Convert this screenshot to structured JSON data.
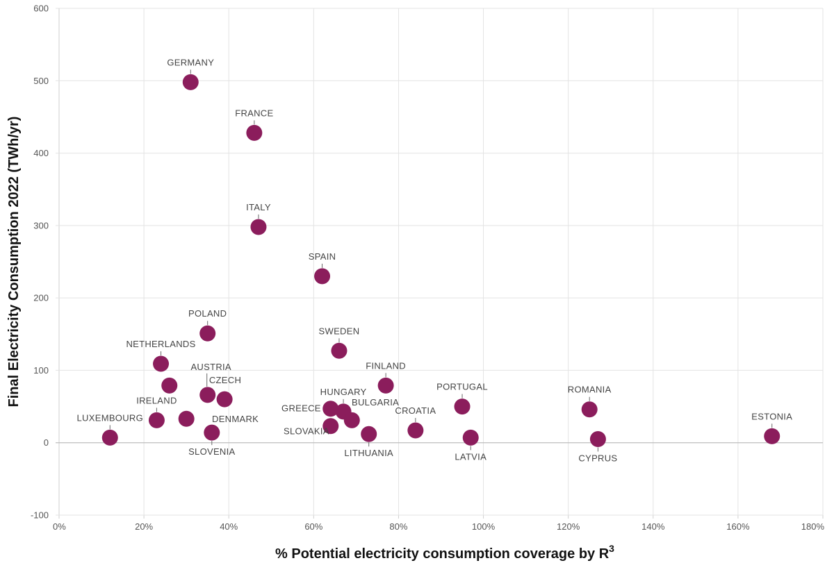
{
  "colors": {
    "point": "#8b1d5c",
    "grid": "#e3e3e3",
    "zero": "#bdbdbd",
    "text": "#444444"
  },
  "chart_data": {
    "type": "scatter",
    "xlabel": "% Potential electricity consumption coverage by R",
    "xlabel_sup": "3",
    "ylabel": "Final Electricity Consumption 2022 (TWh/yr)",
    "xlim": [
      0,
      180
    ],
    "ylim": [
      -100,
      600
    ],
    "x_ticks": [
      0,
      20,
      40,
      60,
      80,
      100,
      120,
      140,
      160,
      180
    ],
    "x_tick_labels": [
      "0%",
      "20%",
      "40%",
      "60%",
      "80%",
      "100%",
      "120%",
      "140%",
      "160%",
      "180%"
    ],
    "y_ticks": [
      -100,
      0,
      100,
      200,
      300,
      400,
      500,
      600
    ],
    "y_tick_labels": [
      "-100",
      "0",
      "100",
      "200",
      "300",
      "400",
      "500",
      "600"
    ],
    "grid": true,
    "points": [
      {
        "label": "GERMANY",
        "x": 31,
        "y": 498
      },
      {
        "label": "FRANCE",
        "x": 46,
        "y": 428
      },
      {
        "label": "ITALY",
        "x": 47,
        "y": 298
      },
      {
        "label": "SPAIN",
        "x": 62,
        "y": 230
      },
      {
        "label": "POLAND",
        "x": 35,
        "y": 151
      },
      {
        "label": "SWEDEN",
        "x": 66,
        "y": 127
      },
      {
        "label": "NETHERLANDS",
        "x": 24,
        "y": 109
      },
      {
        "label": "",
        "x": 26,
        "y": 79
      },
      {
        "label": "FINLAND",
        "x": 77,
        "y": 79
      },
      {
        "label": "AUSTRIA",
        "x": 35,
        "y": 66
      },
      {
        "label": "CZECH",
        "x": 39,
        "y": 60
      },
      {
        "label": "PORTUGAL",
        "x": 95,
        "y": 50
      },
      {
        "label": "ROMANIA",
        "x": 125,
        "y": 46
      },
      {
        "label": "HUNGARY",
        "x": 67,
        "y": 43
      },
      {
        "label": "GREECE",
        "x": 64,
        "y": 47
      },
      {
        "label": "BULGARIA",
        "x": 69,
        "y": 31
      },
      {
        "label": "IRELAND",
        "x": 23,
        "y": 31
      },
      {
        "label": "DENMARK",
        "x": 30,
        "y": 33
      },
      {
        "label": "SLOVAKIA",
        "x": 64,
        "y": 23
      },
      {
        "label": "CROATIA",
        "x": 84,
        "y": 17
      },
      {
        "label": "SLOVENIA",
        "x": 36,
        "y": 14
      },
      {
        "label": "LITHUANIA",
        "x": 73,
        "y": 12
      },
      {
        "label": "ESTONIA",
        "x": 168,
        "y": 9
      },
      {
        "label": "LUXEMBOURG",
        "x": 12,
        "y": 7
      },
      {
        "label": "LATVIA",
        "x": 97,
        "y": 7
      },
      {
        "label": "CYPRUS",
        "x": 127,
        "y": 5
      }
    ]
  }
}
